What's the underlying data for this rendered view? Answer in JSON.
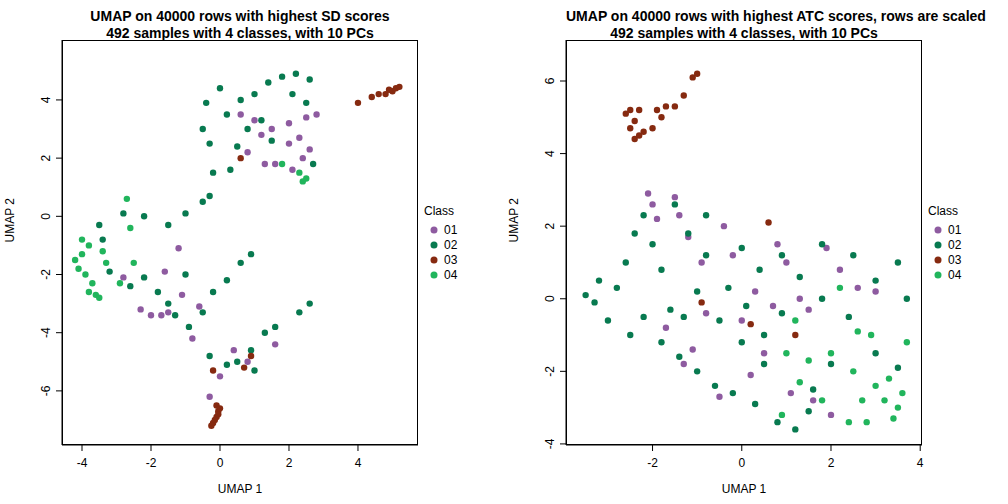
{
  "chart_data": [
    {
      "type": "scatter",
      "title": "UMAP on 40000 rows with highest SD scores",
      "subtitle": "492 samples with 4 classes, with 10 PCs",
      "xlabel": "UMAP 1",
      "ylabel": "UMAP 2",
      "legend": "right",
      "legend_title": "Class",
      "marker": "circle",
      "xlim": [
        -4.58,
        5.74
      ],
      "xticks": [
        -4,
        -2,
        0,
        2,
        4
      ],
      "ylim": [
        -7.86,
        6.06
      ],
      "yticks": [
        -6,
        -4,
        -2,
        0,
        2,
        4
      ],
      "series": [
        {
          "name": "01",
          "color": "#8E5BA0",
          "x": [
            1.0,
            1.5,
            2.0,
            2.3,
            2.6,
            2.8,
            2.5,
            2.0,
            1.6,
            1.3,
            2.1,
            0.8,
            0.6,
            1.2,
            2.4,
            -1.2,
            -1.6,
            -1.1,
            -1.5,
            -2.0,
            -2.3,
            -1.7,
            -0.8,
            -2.8,
            0.4,
            0.8,
            -0.3,
            0.0,
            1.6,
            -0.6
          ],
          "y": [
            3.3,
            3.0,
            3.2,
            2.7,
            2.3,
            3.5,
            3.4,
            2.5,
            1.8,
            1.8,
            1.6,
            2.2,
            3.5,
            2.8,
            2.0,
            -1.1,
            -1.9,
            -2.7,
            -3.3,
            -3.4,
            -3.2,
            -3.4,
            -4.2,
            -2.1,
            -4.6,
            -5.0,
            -6.2,
            -5.5,
            -4.4,
            -3.1
          ]
        },
        {
          "name": "02",
          "color": "#087A50",
          "x": [
            0.0,
            -0.4,
            -0.5,
            -0.3,
            -0.2,
            0.3,
            0.5,
            0.2,
            0.6,
            1.0,
            1.4,
            1.8,
            2.2,
            2.6,
            2.1,
            2.5,
            1.2,
            0.8,
            1.5,
            2.7,
            -0.3,
            -0.5,
            -1.0,
            -1.5,
            -2.2,
            -2.8,
            -3.4,
            -3.5,
            -3.2,
            -2.6,
            -2.2,
            -1.8,
            -1.5,
            -1.3,
            -0.9,
            -0.5,
            -0.2,
            0.2,
            0.6,
            0.9,
            -1.0,
            0.5,
            0.9,
            1.3,
            1.6,
            2.3,
            2.6,
            0.2,
            1.0,
            -0.3
          ],
          "y": [
            4.4,
            3.9,
            3.0,
            2.5,
            1.5,
            1.6,
            2.4,
            3.5,
            4.0,
            4.2,
            4.6,
            4.8,
            4.9,
            4.7,
            4.2,
            3.9,
            3.3,
            3.0,
            2.6,
            1.8,
            0.7,
            0.5,
            0.1,
            -0.3,
            0.0,
            0.1,
            -0.8,
            -0.3,
            -1.9,
            -2.4,
            -2.1,
            -2.6,
            -3.0,
            -3.4,
            -3.8,
            -3.3,
            -2.6,
            -2.2,
            -1.6,
            -1.3,
            -2.0,
            -5.0,
            -4.6,
            -4.0,
            -3.8,
            -3.3,
            -3.0,
            -5.1,
            -5.3,
            -4.8
          ]
        },
        {
          "name": "03",
          "color": "#862A10",
          "x": [
            -0.1,
            -0.05,
            -0.1,
            -0.15,
            -0.2,
            -0.25,
            0.0,
            -0.05,
            4.6,
            4.8,
            5.0,
            5.1,
            5.2,
            4.4,
            4.0,
            4.9,
            0.6,
            0.7,
            -0.2,
            0.9
          ],
          "y": [
            -6.5,
            -6.7,
            -6.9,
            -7.0,
            -7.1,
            -7.2,
            -6.6,
            -6.8,
            4.2,
            4.2,
            4.3,
            4.4,
            4.45,
            4.1,
            3.9,
            4.35,
            2.0,
            -5.2,
            -5.3,
            -4.8
          ]
        },
        {
          "name": "04",
          "color": "#21B55C",
          "x": [
            -4.0,
            -3.8,
            -4.2,
            -4.1,
            -3.9,
            -3.7,
            -3.6,
            -3.5,
            -3.4,
            -3.3,
            -4.0,
            -3.8,
            -2.7,
            -2.6,
            -2.9,
            2.4,
            2.3,
            2.5,
            1.8,
            -2.5
          ],
          "y": [
            -0.8,
            -1.0,
            -1.5,
            -1.8,
            -2.0,
            -2.3,
            -2.7,
            -2.8,
            -1.2,
            -1.6,
            -1.3,
            -2.6,
            0.6,
            -0.4,
            -2.3,
            1.2,
            1.5,
            1.3,
            1.8,
            -1.6
          ]
        }
      ]
    },
    {
      "type": "scatter",
      "title": "UMAP on 40000 rows with highest ATC scores, rows are scaled",
      "subtitle": "492 samples with 4 classes, with 10 PCs",
      "xlabel": "UMAP 1",
      "ylabel": "UMAP 2",
      "legend": "right",
      "legend_title": "Class",
      "marker": "circle",
      "xlim": [
        -3.94,
        4.04
      ],
      "xticks": [
        -2,
        0,
        2,
        4
      ],
      "ylim": [
        -4.03,
        7.13
      ],
      "yticks": [
        -4,
        -2,
        0,
        2,
        4,
        6
      ],
      "series": [
        {
          "name": "01",
          "color": "#8E5BA0",
          "x": [
            -2.1,
            -2.0,
            -1.9,
            -1.5,
            -1.4,
            -1.2,
            -0.9,
            -1.1,
            -0.8,
            -0.4,
            -0.2,
            0.3,
            0.5,
            0.8,
            1.0,
            1.3,
            1.5,
            1.9,
            2.2,
            2.6,
            3.0,
            0.0,
            -0.5,
            0.2,
            1.6,
            2.0,
            1.1,
            -1.3,
            -1.7,
            0.7
          ],
          "y": [
            2.9,
            2.6,
            2.2,
            2.8,
            2.3,
            1.7,
            1.0,
            -1.4,
            -0.4,
            2.0,
            1.2,
            0.2,
            -1.5,
            1.5,
            1.0,
            0.0,
            -0.3,
            1.4,
            0.8,
            0.3,
            0.2,
            -0.6,
            -2.7,
            -2.1,
            -2.8,
            -3.2,
            -2.6,
            -1.8,
            -0.8,
            -0.2
          ]
        },
        {
          "name": "02",
          "color": "#087A50",
          "x": [
            -3.5,
            -3.2,
            -3.0,
            -2.8,
            -2.6,
            -2.4,
            -2.2,
            -2.0,
            -1.8,
            -1.6,
            -2.2,
            -2.5,
            -1.8,
            -1.4,
            -1.0,
            -0.6,
            -0.2,
            0.3,
            0.8,
            1.2,
            1.5,
            0.5,
            0.0,
            -0.5,
            -1.0,
            -0.8,
            -1.2,
            -0.8,
            0.0,
            0.4,
            0.9,
            1.3,
            1.8,
            2.4,
            3.0,
            3.5,
            3.7,
            3.5,
            3.0,
            2.5,
            1.8,
            0.9,
            0.5,
            -0.3,
            -1.3,
            -3.3,
            -1.5,
            0.1,
            2.0,
            1.6
          ],
          "y": [
            0.1,
            0.5,
            -0.6,
            0.3,
            1.0,
            1.8,
            2.3,
            1.5,
            0.8,
            -0.3,
            -0.5,
            -1.0,
            -1.2,
            -1.6,
            -2.0,
            -2.4,
            -2.6,
            -2.9,
            -3.4,
            -3.6,
            -3.1,
            -1.8,
            -1.2,
            -0.6,
            0.2,
            1.2,
            1.8,
            2.3,
            1.4,
            0.8,
            1.2,
            0.6,
            0.0,
            -0.5,
            -1.5,
            -1.9,
            0.0,
            1.0,
            0.5,
            1.2,
            1.5,
            -0.4,
            -1.0,
            0.3,
            -0.5,
            -0.1,
            2.6,
            -0.2,
            -1.8,
            -2.5
          ]
        },
        {
          "name": "03",
          "color": "#862A10",
          "x": [
            -2.5,
            -2.6,
            -2.3,
            -2.4,
            -2.5,
            -2.2,
            -2.4,
            -2.0,
            -1.8,
            -1.7,
            -1.5,
            -1.3,
            -1.1,
            -1.0,
            -2.3,
            -1.9,
            0.6,
            -0.9,
            0.2,
            1.2
          ],
          "y": [
            5.2,
            5.1,
            5.2,
            4.9,
            4.7,
            4.6,
            4.4,
            4.7,
            5.0,
            5.3,
            5.3,
            5.6,
            6.1,
            6.2,
            4.5,
            5.2,
            2.1,
            -0.1,
            -0.7,
            -1.0
          ]
        },
        {
          "name": "04",
          "color": "#21B55C",
          "x": [
            1.5,
            2.0,
            2.5,
            3.0,
            3.2,
            3.5,
            3.6,
            2.8,
            2.4,
            1.8,
            1.3,
            0.9,
            1.2,
            2.6,
            3.7,
            2.2,
            3.3,
            1.0,
            2.7,
            3.4,
            2.9
          ],
          "y": [
            -1.7,
            -1.5,
            -2.0,
            -2.4,
            -2.8,
            -3.0,
            -2.6,
            -3.4,
            -3.4,
            -2.8,
            -2.3,
            -3.2,
            -0.6,
            -0.9,
            -1.2,
            0.3,
            -2.2,
            -1.5,
            -2.8,
            -3.3,
            -1.0
          ]
        }
      ]
    }
  ]
}
